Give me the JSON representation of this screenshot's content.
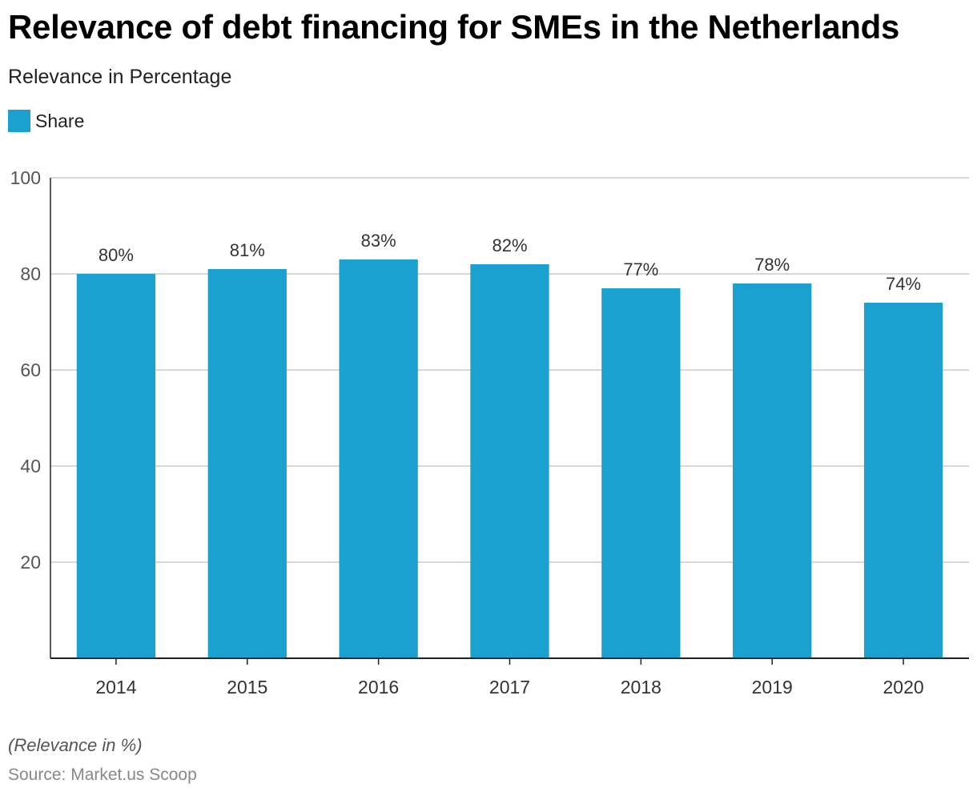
{
  "header": {
    "title": "Relevance of debt financing for SMEs in the Netherlands",
    "subtitle": "Relevance in Percentage"
  },
  "legend": {
    "label": "Share"
  },
  "footer": {
    "note": "(Relevance in %)",
    "source": "Source: Market.us Scoop"
  },
  "colors": {
    "bar": "#1ba1cf",
    "grid": "#cccccc",
    "axis": "#222222",
    "tick_text": "#555555",
    "label_text": "#333333"
  },
  "chart_data": {
    "type": "bar",
    "title": "Relevance of debt financing for SMEs in the Netherlands",
    "subtitle": "Relevance in Percentage",
    "categories": [
      "2014",
      "2015",
      "2016",
      "2017",
      "2018",
      "2019",
      "2020"
    ],
    "series": [
      {
        "name": "Share",
        "values": [
          80,
          81,
          83,
          82,
          77,
          78,
          74
        ],
        "data_labels": [
          "80%",
          "81%",
          "83%",
          "82%",
          "77%",
          "78%",
          "74%"
        ]
      }
    ],
    "ylim": [
      0,
      100
    ],
    "yticks": [
      20,
      40,
      60,
      80,
      100
    ],
    "grid": true,
    "legend_position": "top-left"
  }
}
